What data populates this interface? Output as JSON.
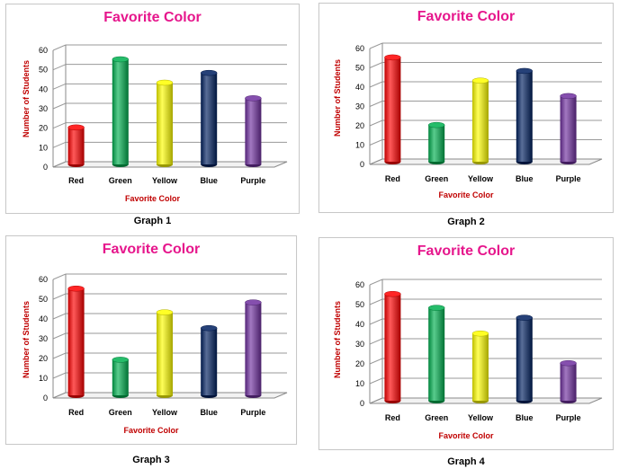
{
  "colors": {
    "title": "#e6168c",
    "axis_label": "#c00000",
    "bar_colors": [
      "#ff0000",
      "#00b050",
      "#ffff00",
      "#002060",
      "#7030a0"
    ]
  },
  "chart_data": [
    {
      "type": "bar",
      "title": "Favorite Color",
      "xlabel": "Favorite Color",
      "ylabel": "Number of Students",
      "caption": "Graph 1",
      "categories": [
        "Red",
        "Green",
        "Yellow",
        "Blue",
        "Purple"
      ],
      "values": [
        19,
        54,
        42,
        47,
        34
      ],
      "ylim": [
        0,
        60
      ],
      "yticks": [
        0,
        10,
        20,
        30,
        40,
        50,
        60
      ],
      "bar_colors": [
        "#ff0000",
        "#00b050",
        "#ffff00",
        "#002060",
        "#7030a0"
      ],
      "grid": true,
      "legend": "none"
    },
    {
      "type": "bar",
      "title": "Favorite Color",
      "xlabel": "Favorite Color",
      "ylabel": "Number of Students",
      "caption": "Graph 2",
      "categories": [
        "Red",
        "Green",
        "Yellow",
        "Blue",
        "Purple"
      ],
      "values": [
        54,
        19,
        42,
        47,
        34
      ],
      "ylim": [
        0,
        60
      ],
      "yticks": [
        0,
        10,
        20,
        30,
        40,
        50,
        60
      ],
      "bar_colors": [
        "#ff0000",
        "#00b050",
        "#ffff00",
        "#002060",
        "#7030a0"
      ],
      "grid": true,
      "legend": "none"
    },
    {
      "type": "bar",
      "title": "Favorite Color",
      "xlabel": "Favorite Color",
      "ylabel": "Number of Students",
      "caption": "Graph 3",
      "categories": [
        "Red",
        "Green",
        "Yellow",
        "Blue",
        "Purple"
      ],
      "values": [
        54,
        18,
        42,
        34,
        47
      ],
      "ylim": [
        0,
        60
      ],
      "yticks": [
        0,
        10,
        20,
        30,
        40,
        50,
        60
      ],
      "bar_colors": [
        "#ff0000",
        "#00b050",
        "#ffff00",
        "#002060",
        "#7030a0"
      ],
      "grid": true,
      "legend": "none"
    },
    {
      "type": "bar",
      "title": "Favorite Color",
      "xlabel": "Favorite Color",
      "ylabel": "Number of Students",
      "caption": "Graph 4",
      "categories": [
        "Red",
        "Green",
        "Yellow",
        "Blue",
        "Purple"
      ],
      "values": [
        54,
        47,
        34,
        42,
        19
      ],
      "ylim": [
        0,
        60
      ],
      "yticks": [
        0,
        10,
        20,
        30,
        40,
        50,
        60
      ],
      "bar_colors": [
        "#ff0000",
        "#00b050",
        "#ffff00",
        "#002060",
        "#7030a0"
      ],
      "grid": true,
      "legend": "none"
    }
  ]
}
